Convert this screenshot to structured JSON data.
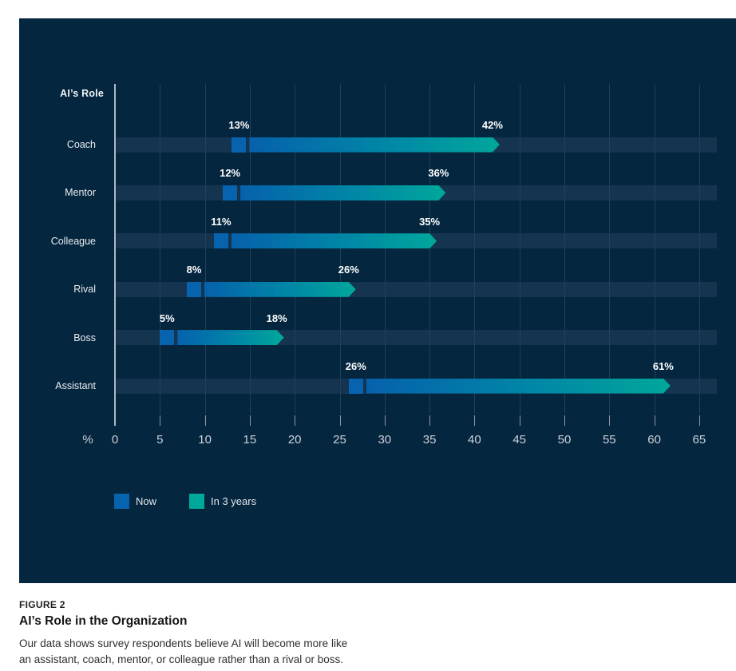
{
  "figure": {
    "label": "FIGURE 2",
    "title": "AI’s Role in the Organization",
    "caption_line1": "Our data shows survey respondents believe AI will become more like",
    "caption_line2": "an assistant, coach, mentor, or colleague rather than a rival or boss."
  },
  "chart_data": {
    "type": "bar",
    "orientation": "horizontal",
    "axis_title": "AI’s Role",
    "x_unit_label": "%",
    "categories": [
      "Coach",
      "Mentor",
      "Colleague",
      "Rival",
      "Boss",
      "Assistant"
    ],
    "series": [
      {
        "name": "Now",
        "color": "#0763AE",
        "values": [
          13,
          12,
          11,
          8,
          5,
          26
        ]
      },
      {
        "name": "In 3 years",
        "color": "#00A79B",
        "values": [
          42,
          36,
          35,
          26,
          18,
          61
        ]
      }
    ],
    "value_label_format": "percent",
    "xlim": [
      0,
      65
    ],
    "xticks": [
      0,
      5,
      10,
      15,
      20,
      25,
      30,
      35,
      40,
      45,
      50,
      55,
      60,
      65
    ],
    "grid": true,
    "legend_position": "bottom-left",
    "colors": {
      "panel_bg": "#05263F",
      "row_track": "#15344F",
      "gridline": "#21405C",
      "axis_line": "#AFB8C2",
      "tick_text": "#CBD2DA",
      "category_text": "#E8ECF0",
      "value_text": "#FFFFFF",
      "gradient_mid": "#0087A6"
    }
  },
  "legend": {
    "items": [
      {
        "label": "Now",
        "color": "#0763AE"
      },
      {
        "label": "In 3 years",
        "color": "#00A79B"
      }
    ]
  }
}
